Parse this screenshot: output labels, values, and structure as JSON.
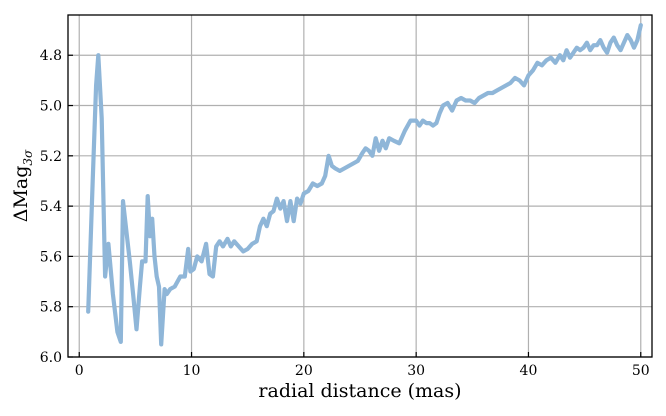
{
  "chart_data": {
    "type": "line",
    "xlabel": "radial distance (mas)",
    "ylabel": "ΔMag",
    "ylabel_subscript": "3σ",
    "xlim": [
      -1,
      51
    ],
    "ylim": [
      6.0,
      4.64
    ],
    "y_inverted": true,
    "grid": true,
    "x_ticks": [
      0,
      10,
      20,
      30,
      40,
      50
    ],
    "y_ticks": [
      4.8,
      5.0,
      5.2,
      5.4,
      5.6,
      5.8,
      6.0
    ],
    "x_tick_labels": [
      "0",
      "10",
      "20",
      "30",
      "40",
      "50"
    ],
    "y_tick_labels": [
      "4.8",
      "5.0",
      "5.2",
      "5.4",
      "5.6",
      "5.8",
      "6.0"
    ],
    "colors": {
      "series": "#8fb6d8"
    },
    "series": [
      {
        "x": [
          0.8,
          1.2,
          1.5,
          1.7,
          2.0,
          2.3,
          2.6,
          3.0,
          3.4,
          3.7,
          3.9,
          4.2,
          4.5,
          4.8,
          5.1,
          5.4,
          5.6,
          5.9,
          6.1,
          6.3,
          6.5,
          6.7,
          6.9,
          7.1,
          7.3,
          7.6,
          7.8,
          8.1,
          8.5,
          9.0,
          9.4,
          9.7,
          9.9,
          10.2,
          10.5,
          10.9,
          11.3,
          11.6,
          11.9,
          12.2,
          12.5,
          12.8,
          13.2,
          13.5,
          13.8,
          14.2,
          14.6,
          15.0,
          15.4,
          15.8,
          16.1,
          16.4,
          16.7,
          17.0,
          17.3,
          17.6,
          17.9,
          18.2,
          18.5,
          18.8,
          19.1,
          19.4,
          19.7,
          20.0,
          20.4,
          20.8,
          21.2,
          21.6,
          21.9,
          22.2,
          22.5,
          22.8,
          23.2,
          23.6,
          24.0,
          24.4,
          24.8,
          25.2,
          25.5,
          25.8,
          26.1,
          26.4,
          26.7,
          27.0,
          27.3,
          27.6,
          28.0,
          28.5,
          29.0,
          29.5,
          30.0,
          30.3,
          30.6,
          30.9,
          31.2,
          31.5,
          31.8,
          32.1,
          32.4,
          32.8,
          33.2,
          33.6,
          34.0,
          34.4,
          34.8,
          35.2,
          35.6,
          36.0,
          36.4,
          36.8,
          37.2,
          37.6,
          38.0,
          38.4,
          38.8,
          39.2,
          39.6,
          40.0,
          40.4,
          40.8,
          41.2,
          41.6,
          42.0,
          42.4,
          42.8,
          43.1,
          43.4,
          43.7,
          44.0,
          44.3,
          44.6,
          44.9,
          45.2,
          45.5,
          45.8,
          46.1,
          46.4,
          46.7,
          47.0,
          47.3,
          47.6,
          47.9,
          48.2,
          48.5,
          48.8,
          49.1,
          49.4,
          49.7,
          50.0
        ],
        "y": [
          5.82,
          5.3,
          4.92,
          4.8,
          5.05,
          5.68,
          5.55,
          5.75,
          5.9,
          5.94,
          5.38,
          5.5,
          5.62,
          5.75,
          5.89,
          5.72,
          5.62,
          5.62,
          5.36,
          5.52,
          5.45,
          5.6,
          5.68,
          5.72,
          5.95,
          5.73,
          5.75,
          5.73,
          5.72,
          5.68,
          5.68,
          5.57,
          5.66,
          5.65,
          5.6,
          5.62,
          5.55,
          5.67,
          5.68,
          5.56,
          5.54,
          5.56,
          5.53,
          5.56,
          5.54,
          5.56,
          5.58,
          5.57,
          5.55,
          5.54,
          5.48,
          5.45,
          5.48,
          5.43,
          5.42,
          5.37,
          5.41,
          5.38,
          5.46,
          5.38,
          5.46,
          5.37,
          5.39,
          5.35,
          5.34,
          5.31,
          5.32,
          5.31,
          5.28,
          5.2,
          5.24,
          5.25,
          5.26,
          5.25,
          5.24,
          5.23,
          5.22,
          5.19,
          5.17,
          5.18,
          5.2,
          5.13,
          5.18,
          5.14,
          5.17,
          5.13,
          5.14,
          5.15,
          5.1,
          5.06,
          5.06,
          5.08,
          5.06,
          5.07,
          5.07,
          5.08,
          5.07,
          5.03,
          5.0,
          4.99,
          5.02,
          4.98,
          4.97,
          4.98,
          4.98,
          4.99,
          4.97,
          4.96,
          4.95,
          4.95,
          4.94,
          4.93,
          4.92,
          4.91,
          4.89,
          4.9,
          4.92,
          4.88,
          4.86,
          4.83,
          4.84,
          4.82,
          4.81,
          4.83,
          4.8,
          4.82,
          4.78,
          4.81,
          4.79,
          4.77,
          4.78,
          4.77,
          4.75,
          4.78,
          4.76,
          4.76,
          4.74,
          4.77,
          4.79,
          4.75,
          4.73,
          4.76,
          4.78,
          4.75,
          4.72,
          4.74,
          4.77,
          4.74,
          4.68
        ]
      }
    ]
  }
}
